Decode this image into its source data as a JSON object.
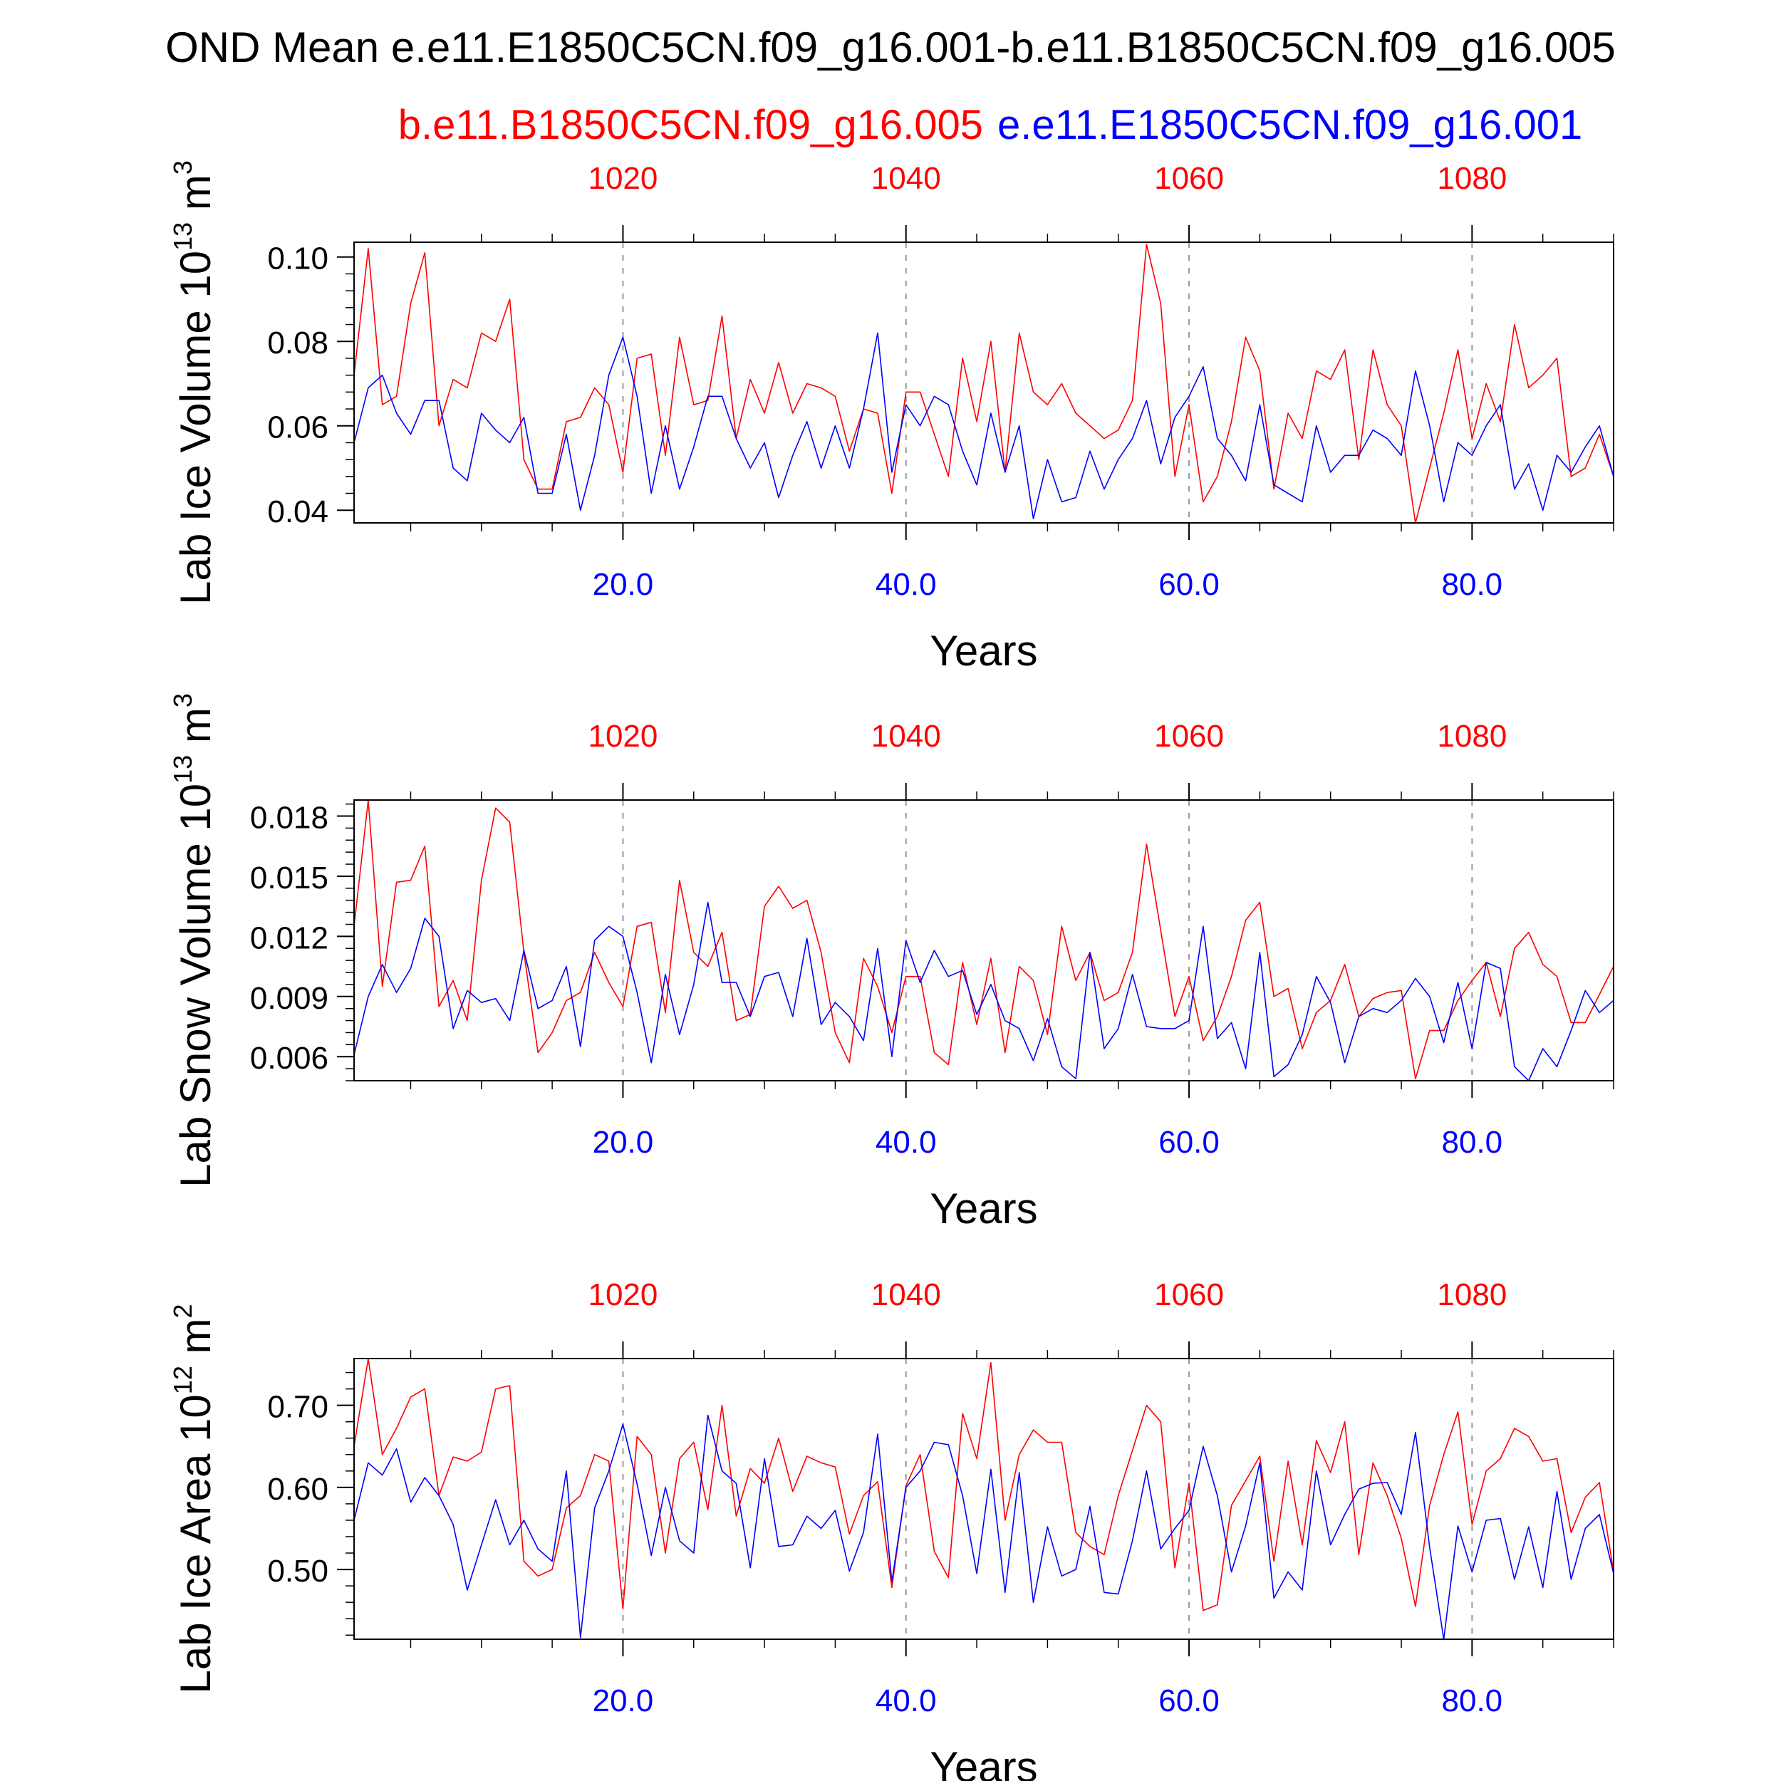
{
  "title": "OND Mean e.e11.E1850C5CN.f09_g16.001-b.e11.B1850C5CN.f09_g16.005",
  "legend": {
    "red_label": "b.e11.B1850C5CN.f09_g16.005",
    "blue_label": "e.e11.E1850C5CN.f09_g16.001"
  },
  "colors": {
    "red": "#ff0000",
    "blue": "#0000ff",
    "axis": "#000000",
    "grid": "#999999"
  },
  "chart_data": [
    {
      "type": "line",
      "ylabel_main": "Lab Ice Volume 10",
      "ylabel_exp": "13",
      "ylabel_unit": " m",
      "ylabel_unit_exp": "3",
      "xlabel": "Years",
      "xlim": [
        1,
        90
      ],
      "ylim": [
        0.037,
        0.1035
      ],
      "yticks": [
        0.04,
        0.06,
        0.08,
        0.1
      ],
      "ytick_labels": [
        "0.04",
        "0.06",
        "0.08",
        "0.10"
      ],
      "bottom_ticks": [
        20,
        40,
        60,
        80
      ],
      "bottom_tick_labels": [
        "20.0",
        "40.0",
        "60.0",
        "80.0"
      ],
      "top_ticks": [
        20,
        40,
        60,
        80
      ],
      "top_tick_labels": [
        "1020",
        "1040",
        "1060",
        "1080"
      ],
      "series": [
        {
          "color": "red",
          "values": [
            0.072,
            0.102,
            0.065,
            0.067,
            0.089,
            0.101,
            0.06,
            0.071,
            0.069,
            0.082,
            0.08,
            0.09,
            0.052,
            0.045,
            0.045,
            0.061,
            0.062,
            0.069,
            0.065,
            0.049,
            0.076,
            0.077,
            0.053,
            0.081,
            0.065,
            0.066,
            0.086,
            0.057,
            0.071,
            0.063,
            0.075,
            0.063,
            0.07,
            0.069,
            0.067,
            0.054,
            0.064,
            0.063,
            0.044,
            0.068,
            0.068,
            0.058,
            0.048,
            0.076,
            0.061,
            0.08,
            0.049,
            0.082,
            0.068,
            0.065,
            0.07,
            0.063,
            0.06,
            0.057,
            0.059,
            0.066,
            0.103,
            0.089,
            0.048,
            0.065,
            0.042,
            0.048,
            0.061,
            0.081,
            0.073,
            0.045,
            0.063,
            0.057,
            0.073,
            0.071,
            0.078,
            0.052,
            0.078,
            0.065,
            0.06,
            0.037,
            0.05,
            0.063,
            0.078,
            0.057,
            0.07,
            0.061,
            0.084,
            0.069,
            0.072,
            0.076,
            0.048,
            0.05,
            0.058,
            0.048
          ]
        },
        {
          "color": "blue",
          "values": [
            0.056,
            0.069,
            0.072,
            0.063,
            0.058,
            0.066,
            0.066,
            0.05,
            0.047,
            0.063,
            0.059,
            0.056,
            0.062,
            0.044,
            0.044,
            0.058,
            0.04,
            0.053,
            0.072,
            0.081,
            0.067,
            0.044,
            0.06,
            0.045,
            0.055,
            0.067,
            0.067,
            0.057,
            0.05,
            0.056,
            0.043,
            0.053,
            0.061,
            0.05,
            0.06,
            0.05,
            0.064,
            0.082,
            0.049,
            0.065,
            0.06,
            0.067,
            0.065,
            0.054,
            0.046,
            0.063,
            0.049,
            0.06,
            0.038,
            0.052,
            0.042,
            0.043,
            0.054,
            0.045,
            0.052,
            0.057,
            0.066,
            0.051,
            0.062,
            0.067,
            0.074,
            0.057,
            0.053,
            0.047,
            0.065,
            0.046,
            0.044,
            0.042,
            0.06,
            0.049,
            0.053,
            0.053,
            0.059,
            0.057,
            0.053,
            0.073,
            0.06,
            0.042,
            0.056,
            0.053,
            0.06,
            0.065,
            0.045,
            0.051,
            0.04,
            0.053,
            0.049,
            0.055,
            0.06,
            0.048
          ]
        }
      ]
    },
    {
      "type": "line",
      "ylabel_main": "Lab Snow Volume 10",
      "ylabel_exp": "13",
      "ylabel_unit": " m",
      "ylabel_unit_exp": "3",
      "xlabel": "Years",
      "xlim": [
        1,
        90
      ],
      "ylim": [
        0.0048,
        0.0188
      ],
      "yticks": [
        0.006,
        0.009,
        0.012,
        0.015,
        0.018
      ],
      "ytick_labels": [
        "0.006",
        "0.009",
        "0.012",
        "0.015",
        "0.018"
      ],
      "bottom_ticks": [
        20,
        40,
        60,
        80
      ],
      "bottom_tick_labels": [
        "20.0",
        "40.0",
        "60.0",
        "80.0"
      ],
      "top_ticks": [
        20,
        40,
        60,
        80
      ],
      "top_tick_labels": [
        "1020",
        "1040",
        "1060",
        "1080"
      ],
      "series": [
        {
          "color": "red",
          "values": [
            0.0125,
            0.0188,
            0.0095,
            0.0147,
            0.0148,
            0.0165,
            0.0085,
            0.0098,
            0.0078,
            0.0148,
            0.0184,
            0.0177,
            0.0112,
            0.0062,
            0.0072,
            0.0088,
            0.0092,
            0.0112,
            0.0097,
            0.0085,
            0.0125,
            0.0127,
            0.0082,
            0.0148,
            0.0112,
            0.0105,
            0.0122,
            0.0078,
            0.0081,
            0.0135,
            0.0145,
            0.0134,
            0.0138,
            0.0112,
            0.0072,
            0.0057,
            0.0109,
            0.0095,
            0.0072,
            0.01,
            0.01,
            0.0062,
            0.0056,
            0.0107,
            0.0076,
            0.0109,
            0.0062,
            0.0105,
            0.0098,
            0.0071,
            0.0125,
            0.0098,
            0.0112,
            0.0088,
            0.0092,
            0.0112,
            0.0166,
            0.0123,
            0.008,
            0.01,
            0.0068,
            0.008,
            0.01,
            0.0128,
            0.0137,
            0.009,
            0.0094,
            0.0064,
            0.0082,
            0.0088,
            0.0106,
            0.008,
            0.0089,
            0.0092,
            0.0093,
            0.0049,
            0.0073,
            0.0073,
            0.0088,
            0.0098,
            0.0107,
            0.008,
            0.0114,
            0.0122,
            0.0106,
            0.01,
            0.0077,
            0.0077,
            0.0091,
            0.0105
          ]
        },
        {
          "color": "blue",
          "values": [
            0.0061,
            0.009,
            0.0106,
            0.0092,
            0.0104,
            0.0129,
            0.012,
            0.0074,
            0.0093,
            0.0087,
            0.0089,
            0.0078,
            0.0113,
            0.0084,
            0.0088,
            0.0105,
            0.0065,
            0.0118,
            0.0125,
            0.012,
            0.0092,
            0.0057,
            0.0101,
            0.0071,
            0.0096,
            0.0137,
            0.0097,
            0.0097,
            0.008,
            0.01,
            0.0102,
            0.008,
            0.0119,
            0.0076,
            0.0087,
            0.008,
            0.0068,
            0.0114,
            0.006,
            0.0118,
            0.0097,
            0.0113,
            0.01,
            0.0103,
            0.0081,
            0.0096,
            0.0078,
            0.0074,
            0.0058,
            0.0079,
            0.0055,
            0.0049,
            0.0112,
            0.0064,
            0.0074,
            0.0101,
            0.0075,
            0.0074,
            0.0074,
            0.0078,
            0.0125,
            0.0069,
            0.0077,
            0.0054,
            0.0112,
            0.005,
            0.0056,
            0.0071,
            0.01,
            0.0087,
            0.0057,
            0.008,
            0.0084,
            0.0082,
            0.0088,
            0.0099,
            0.009,
            0.0067,
            0.0097,
            0.0064,
            0.0107,
            0.0104,
            0.0055,
            0.0048,
            0.0064,
            0.0055,
            0.0073,
            0.0093,
            0.0082,
            0.0088
          ]
        }
      ]
    },
    {
      "type": "line",
      "ylabel_main": "Lab Ice Area 10",
      "ylabel_exp": "12",
      "ylabel_unit": " m",
      "ylabel_unit_exp": "2",
      "xlabel": "Years",
      "xlim": [
        1,
        90
      ],
      "ylim": [
        0.415,
        0.757
      ],
      "yticks": [
        0.5,
        0.6,
        0.7
      ],
      "ytick_labels": [
        "0.50",
        "0.60",
        "0.70"
      ],
      "bottom_ticks": [
        20,
        40,
        60,
        80
      ],
      "bottom_tick_labels": [
        "20.0",
        "40.0",
        "60.0",
        "80.0"
      ],
      "top_ticks": [
        20,
        40,
        60,
        80
      ],
      "top_tick_labels": [
        "1020",
        "1040",
        "1060",
        "1080"
      ],
      "series": [
        {
          "color": "red",
          "values": [
            0.65,
            0.757,
            0.64,
            0.672,
            0.71,
            0.72,
            0.59,
            0.637,
            0.632,
            0.643,
            0.72,
            0.724,
            0.51,
            0.492,
            0.5,
            0.575,
            0.59,
            0.64,
            0.632,
            0.452,
            0.662,
            0.64,
            0.52,
            0.635,
            0.655,
            0.573,
            0.7,
            0.565,
            0.623,
            0.605,
            0.66,
            0.595,
            0.638,
            0.63,
            0.625,
            0.543,
            0.59,
            0.607,
            0.478,
            0.602,
            0.64,
            0.522,
            0.49,
            0.69,
            0.635,
            0.752,
            0.56,
            0.64,
            0.67,
            0.655,
            0.655,
            0.545,
            0.528,
            0.518,
            0.59,
            0.645,
            0.7,
            0.68,
            0.502,
            0.605,
            0.45,
            0.457,
            0.578,
            0.608,
            0.638,
            0.51,
            0.632,
            0.53,
            0.657,
            0.618,
            0.68,
            0.518,
            0.63,
            0.59,
            0.538,
            0.455,
            0.578,
            0.64,
            0.692,
            0.555,
            0.62,
            0.635,
            0.672,
            0.662,
            0.632,
            0.635,
            0.545,
            0.588,
            0.606,
            0.497
          ]
        },
        {
          "color": "blue",
          "values": [
            0.56,
            0.63,
            0.615,
            0.647,
            0.582,
            0.612,
            0.59,
            0.555,
            0.475,
            0.53,
            0.585,
            0.53,
            0.56,
            0.525,
            0.51,
            0.62,
            0.417,
            0.575,
            0.62,
            0.677,
            0.604,
            0.517,
            0.6,
            0.535,
            0.52,
            0.688,
            0.62,
            0.605,
            0.502,
            0.635,
            0.528,
            0.53,
            0.565,
            0.55,
            0.572,
            0.498,
            0.545,
            0.665,
            0.485,
            0.6,
            0.62,
            0.655,
            0.652,
            0.59,
            0.495,
            0.622,
            0.472,
            0.618,
            0.46,
            0.552,
            0.492,
            0.5,
            0.577,
            0.472,
            0.47,
            0.535,
            0.62,
            0.525,
            0.55,
            0.572,
            0.65,
            0.59,
            0.497,
            0.553,
            0.63,
            0.465,
            0.497,
            0.475,
            0.62,
            0.53,
            0.567,
            0.598,
            0.605,
            0.606,
            0.567,
            0.667,
            0.527,
            0.415,
            0.553,
            0.497,
            0.56,
            0.562,
            0.488,
            0.552,
            0.478,
            0.595,
            0.488,
            0.55,
            0.567,
            0.495
          ]
        }
      ]
    }
  ]
}
